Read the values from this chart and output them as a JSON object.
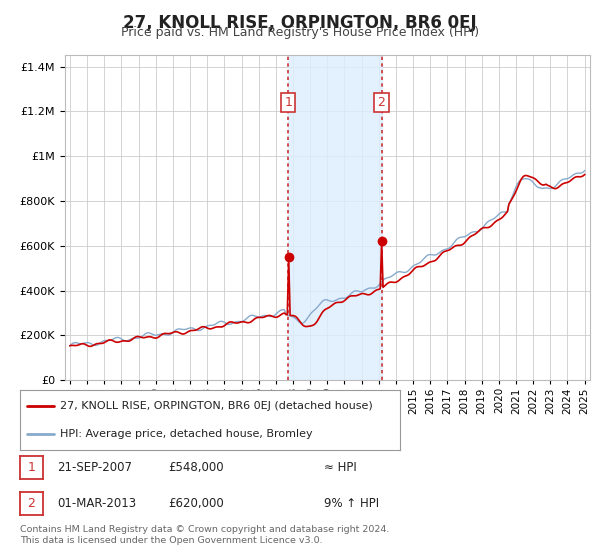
{
  "title": "27, KNOLL RISE, ORPINGTON, BR6 0EJ",
  "subtitle": "Price paid vs. HM Land Registry's House Price Index (HPI)",
  "title_fontsize": 12,
  "subtitle_fontsize": 9,
  "background_color": "#ffffff",
  "grid_color": "#cccccc",
  "sale1_date_num": 2007.72,
  "sale2_date_num": 2013.16,
  "sale1_price": 548000,
  "sale2_price": 620000,
  "legend_line1": "27, KNOLL RISE, ORPINGTON, BR6 0EJ (detached house)",
  "legend_line2": "HPI: Average price, detached house, Bromley",
  "footnote": "Contains HM Land Registry data © Crown copyright and database right 2024.\nThis data is licensed under the Open Government Licence v3.0.",
  "red_line_color": "#cc0000",
  "blue_line_color": "#88aacc",
  "shade_color": "#ddeeff",
  "vline_color": "#cc3333",
  "ylim_min": 0,
  "ylim_max": 1450000,
  "xlim_min": 1994.7,
  "xlim_max": 2025.3,
  "xticks": [
    1995,
    1996,
    1997,
    1998,
    1999,
    2000,
    2001,
    2002,
    2003,
    2004,
    2005,
    2006,
    2007,
    2008,
    2009,
    2010,
    2011,
    2012,
    2013,
    2014,
    2015,
    2016,
    2017,
    2018,
    2019,
    2020,
    2021,
    2022,
    2023,
    2024,
    2025
  ]
}
